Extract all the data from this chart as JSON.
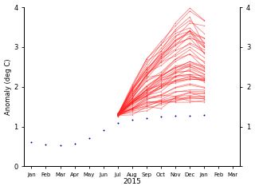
{
  "title": "",
  "xlabel": "2015",
  "ylabel": "Anomaly (deg C)",
  "xlim": [
    -0.5,
    14.5
  ],
  "ylim": [
    0,
    4
  ],
  "yticks": [
    0,
    1,
    2,
    3,
    4
  ],
  "xtick_labels": [
    "Jan",
    "Feb",
    "Mar",
    "Apr",
    "May",
    "Jun",
    "Jul",
    "Aug",
    "Sep",
    "Oct",
    "Nov",
    "Dec",
    "Jan",
    "Feb",
    "Mar"
  ],
  "background_color": "#ffffff",
  "obs_color": "#000080",
  "ensemble_color": "#FF2222",
  "obs_x": [
    0,
    1,
    2,
    3,
    4,
    5,
    6,
    7,
    8,
    9,
    10,
    11,
    12
  ],
  "obs_y": [
    0.62,
    0.55,
    0.52,
    0.58,
    0.72,
    0.92,
    1.1,
    1.18,
    1.22,
    1.25,
    1.27,
    1.28,
    1.3
  ],
  "num_ensemble": 51,
  "ensemble_start_x": 6,
  "ensemble_start_y": 1.3
}
